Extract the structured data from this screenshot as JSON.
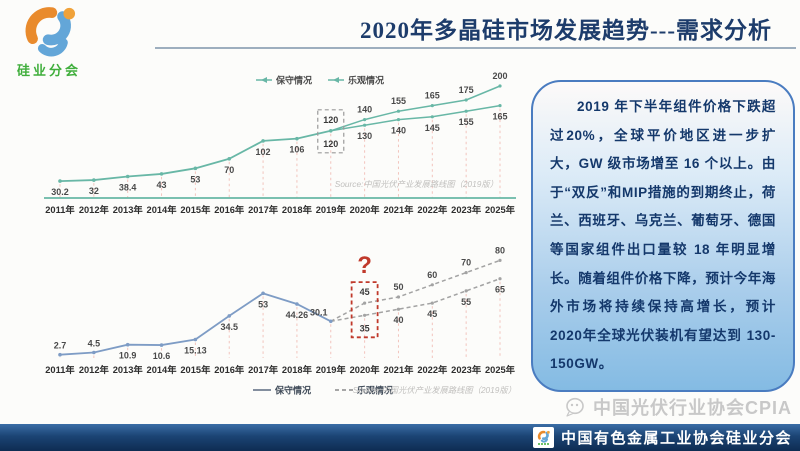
{
  "header": {
    "title": "2020年多晶硅市场发展趋势---需求分析",
    "logo_text": "硅业分会"
  },
  "note": {
    "text": "2019 年下半年组件价格下跌超过20%，全球平价地区进一步扩大，GW 级市场增至 16 个以上。由于“双反”和MIP措施的到期终止，荷兰、西班牙、乌克兰、葡萄牙、德国等国家组件出口量较 18 年明显增长。随着组件价格下降，预计今年海外市场将持续保持高增长，预计2020年全球光伏装机有望达到 130-150GW。"
  },
  "chart_data": [
    {
      "type": "line",
      "categories": [
        "2011年",
        "2012年",
        "2013年",
        "2014年",
        "2015年",
        "2016年",
        "2017年",
        "2018年",
        "2019年",
        "2020年",
        "2021年",
        "2022年",
        "2023年",
        "2025年"
      ],
      "series": [
        {
          "name": "保守情况",
          "values": [
            30.2,
            32,
            38.4,
            43,
            53,
            70,
            102,
            106,
            120,
            130,
            140,
            145,
            155,
            165
          ]
        },
        {
          "name": "乐观情况",
          "values": [
            30.2,
            32,
            38.4,
            43,
            53,
            70,
            102,
            106,
            120,
            140,
            155,
            165,
            175,
            200
          ]
        }
      ],
      "split_index": 8,
      "highlight": {
        "category": "2019年",
        "upper_label": "120",
        "lower_label": "120",
        "box_color": "#9a9a9a"
      },
      "legend_position": "top",
      "source": "Source:中国光伏产业发展路线图（2019版）",
      "ylim": [
        0,
        210
      ],
      "grid": false
    },
    {
      "type": "line",
      "categories": [
        "2011年",
        "2012年",
        "2013年",
        "2014年",
        "2015年",
        "2016年",
        "2017年",
        "2018年",
        "2019年",
        "2020年",
        "2021年",
        "2022年",
        "2023年",
        "2025年"
      ],
      "series": [
        {
          "name": "保守情况",
          "values": [
            2.7,
            4.5,
            10.9,
            10.6,
            15.13,
            34.5,
            53,
            44.26,
            30.1,
            35,
            40,
            45,
            55,
            65
          ]
        },
        {
          "name": "乐观情况",
          "values": [
            2.7,
            4.5,
            10.9,
            10.6,
            15.13,
            34.5,
            53,
            44.26,
            30.1,
            45,
            50,
            60,
            70,
            80
          ]
        }
      ],
      "split_index": 8,
      "highlight": {
        "category": "2020年",
        "upper_label": "45",
        "lower_label": "35",
        "box_color": "#c0392b",
        "annotation": "?"
      },
      "legend_position": "bottom",
      "source": "Source:中国光伏产业发展路线图（2019版）",
      "ylim": [
        0,
        90
      ],
      "grid": false
    }
  ],
  "footer": {
    "watermark": "中国光伏行业协会CPIA",
    "bar_text": "中国有色金属工业协会硅业分会"
  },
  "colors": {
    "accent_teal": "#68b7a6",
    "line_blue": "#7e9cc5",
    "future_gray": "#a3a3a3",
    "dropline_pink": "#f2c4bd",
    "alert_red": "#c0392b",
    "title_navy": "#1d3c6b",
    "note_border": "#4a7cc0",
    "footer_navy": "#0e2c52",
    "logo_green": "#3fae3b"
  }
}
